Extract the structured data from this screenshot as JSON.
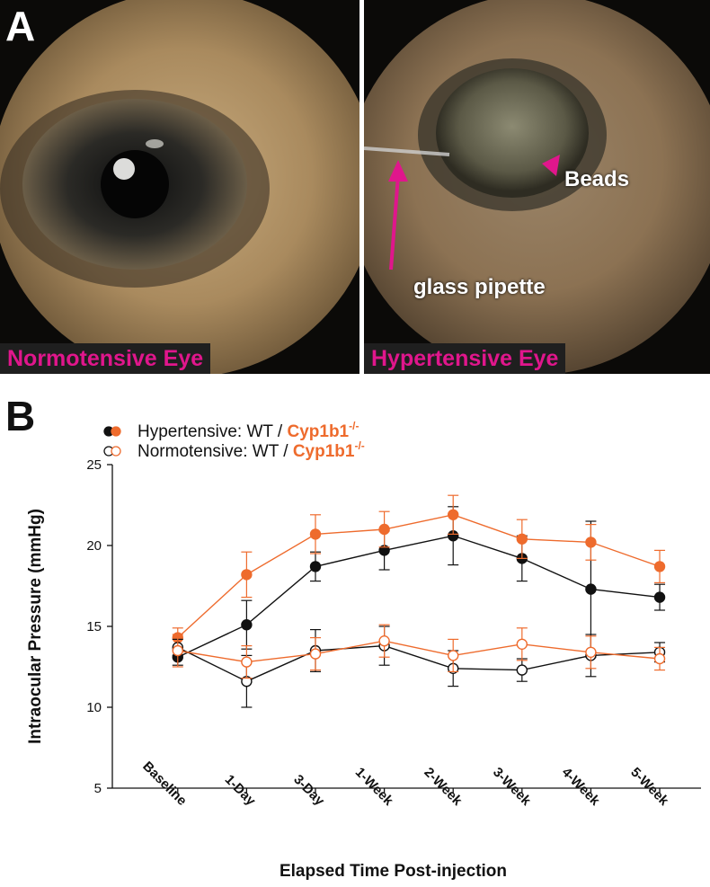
{
  "panels": {
    "a_letter": "A",
    "b_letter": "B",
    "left_photo": {
      "label": "Normotensive Eye",
      "label_color": "#e0168c"
    },
    "right_photo": {
      "label": "Hypertensive Eye",
      "label_color": "#e0168c",
      "annotation_beads": "Beads",
      "annotation_pipette": "glass pipette",
      "arrow_color": "#e0168c"
    }
  },
  "chart_data": {
    "type": "line",
    "xlabel": "Elapsed Time Post-injection",
    "ylabel": "Intraocular Pressure (mmHg)",
    "ylim": [
      5,
      25
    ],
    "yticks": [
      "5",
      "10",
      "15",
      "20",
      "25"
    ],
    "grid": false,
    "legend_position": "top-left",
    "legend": [
      {
        "prefix": "Hypertensive: WT / ",
        "highlight": "Cyp1b1",
        "superscript": "-/-",
        "marker": "filled"
      },
      {
        "prefix": "Normotensive: WT / ",
        "highlight": "Cyp1b1",
        "superscript": "-/-",
        "marker": "open"
      }
    ],
    "categories": [
      "Baseline",
      "1-Day",
      "3-Day",
      "1-Week",
      "2-Week",
      "3-Week",
      "4-Week",
      "5-Week"
    ],
    "series": [
      {
        "group": "Hypertensive",
        "genotype": "WT",
        "color": "#111111",
        "marker": "filled",
        "values": [
          13.1,
          15.1,
          18.7,
          19.7,
          20.6,
          19.2,
          17.3,
          16.8
        ],
        "errors": [
          0.5,
          1.5,
          0.9,
          1.2,
          1.8,
          1.4,
          4.2,
          0.8
        ]
      },
      {
        "group": "Hypertensive",
        "genotype": "Cyp1b1-/-",
        "color": "#ee6b2d",
        "marker": "filled",
        "values": [
          14.3,
          18.2,
          20.7,
          21.0,
          21.9,
          20.4,
          20.2,
          18.7
        ],
        "errors": [
          0.6,
          1.4,
          1.2,
          1.1,
          1.2,
          1.2,
          1.1,
          1.0
        ]
      },
      {
        "group": "Normotensive",
        "genotype": "WT",
        "color": "#111111",
        "marker": "open",
        "values": [
          13.7,
          11.6,
          13.5,
          13.8,
          12.4,
          12.3,
          13.2,
          13.4
        ],
        "errors": [
          0.5,
          1.6,
          1.3,
          1.2,
          1.1,
          0.7,
          1.3,
          0.6
        ]
      },
      {
        "group": "Normotensive",
        "genotype": "Cyp1b1-/-",
        "color": "#ee6b2d",
        "marker": "open",
        "values": [
          13.5,
          12.8,
          13.3,
          14.1,
          13.2,
          13.9,
          13.4,
          13.0
        ],
        "errors": [
          1.0,
          1.0,
          1.0,
          1.0,
          1.0,
          1.0,
          1.0,
          0.7
        ]
      }
    ]
  }
}
